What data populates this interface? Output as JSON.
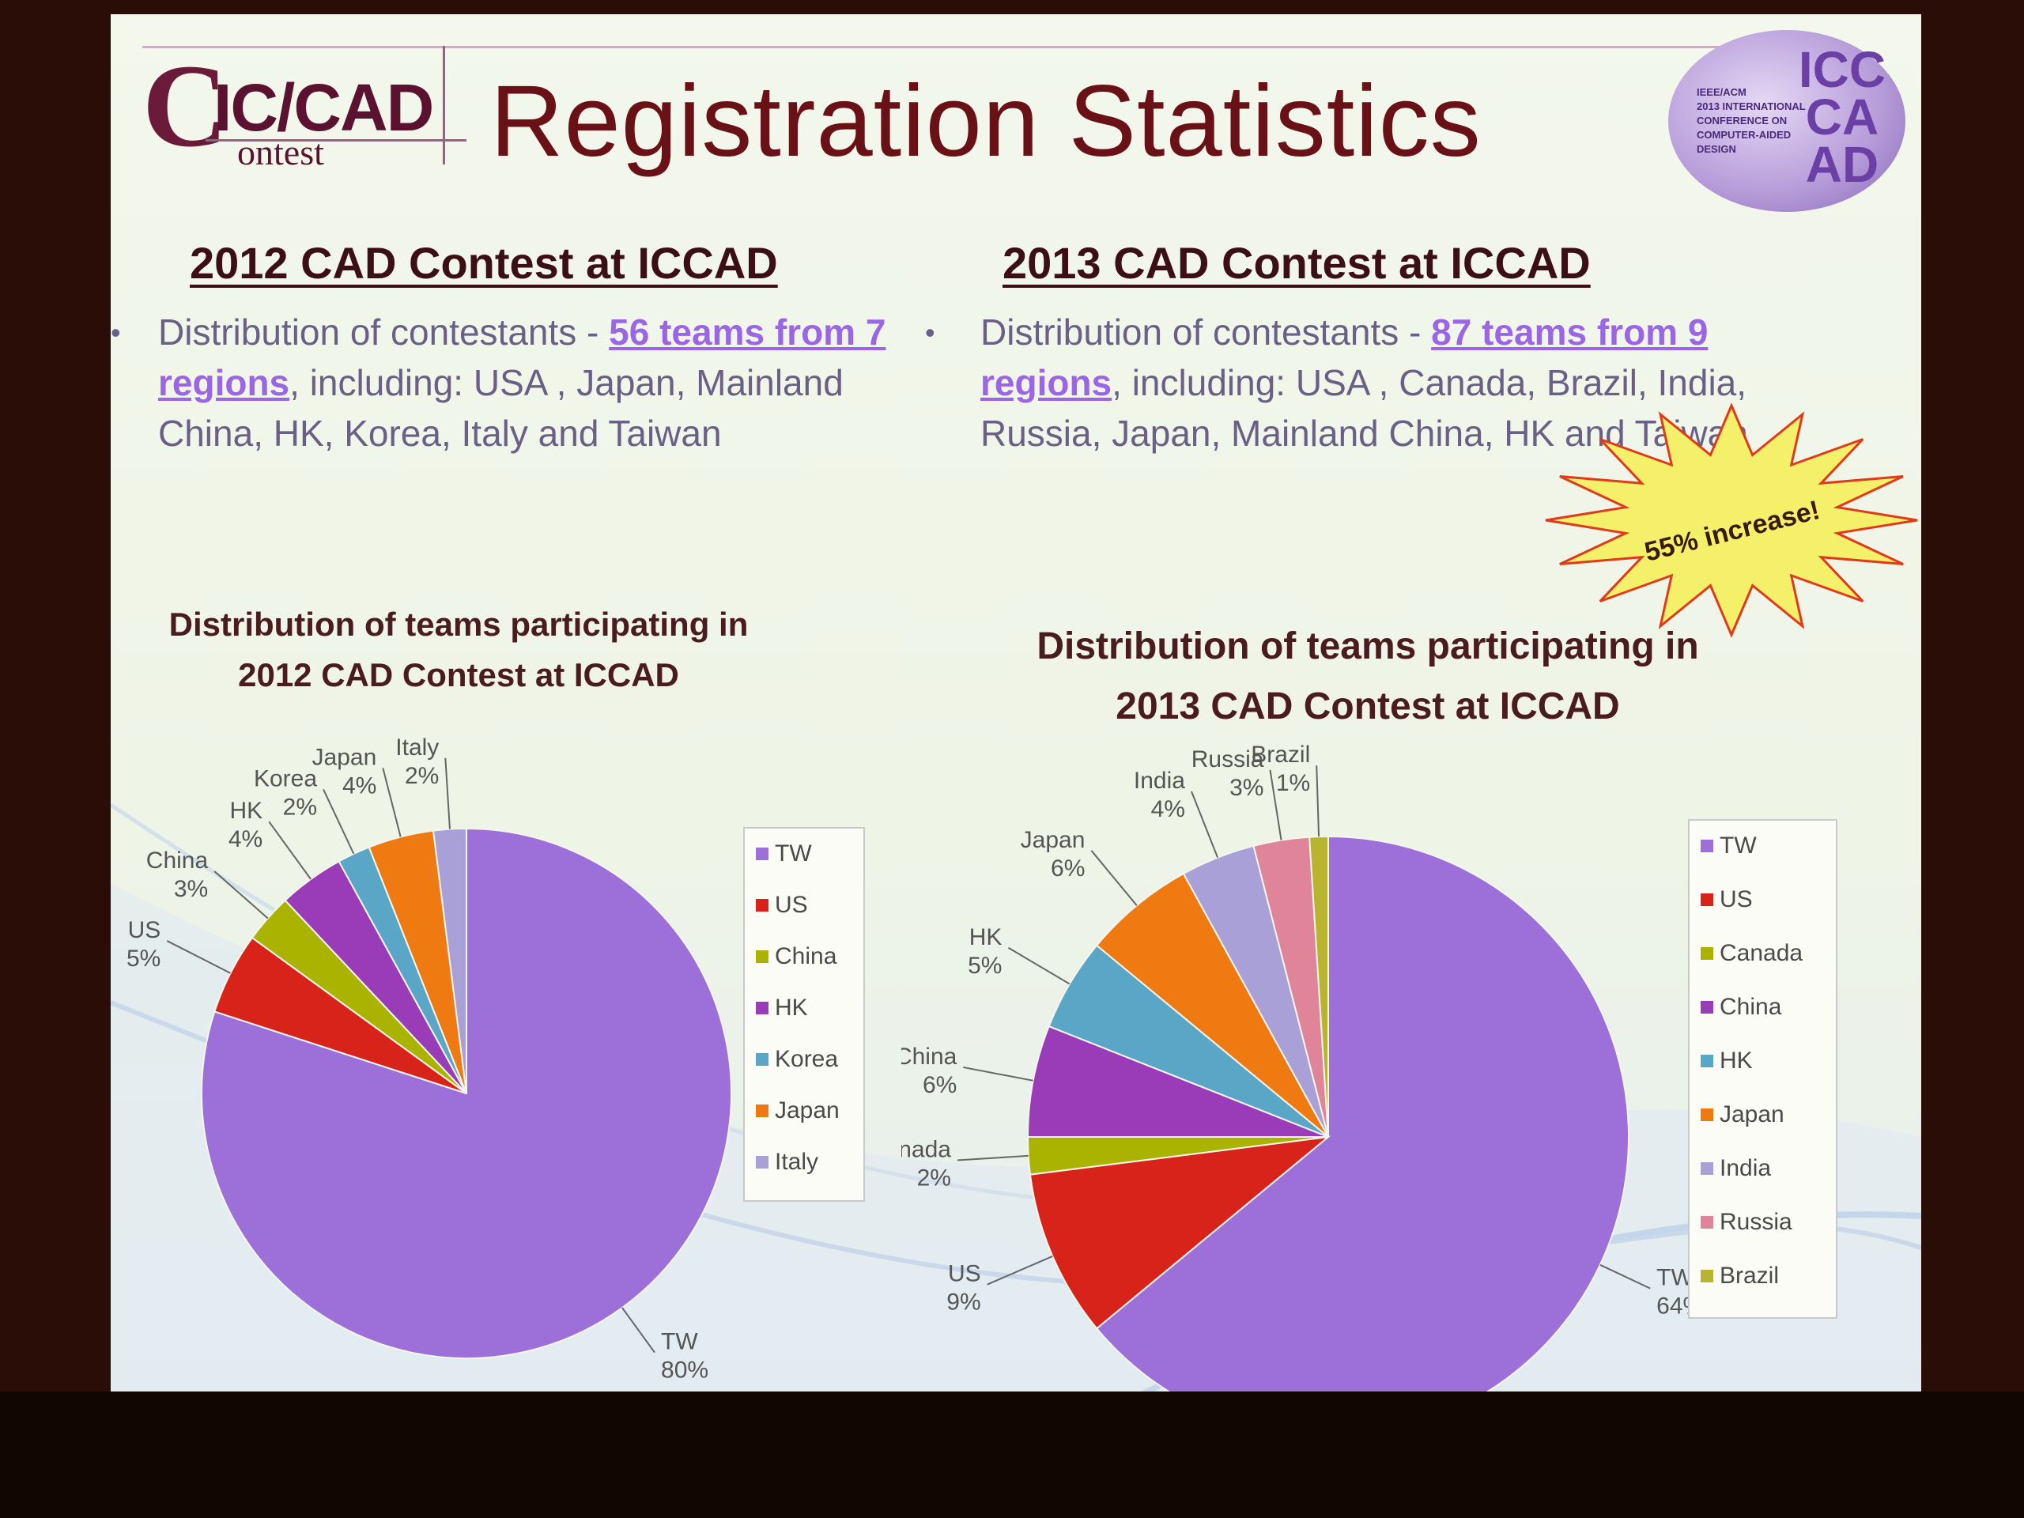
{
  "slide": {
    "logo_left": {
      "c": "C",
      "ic_cad": "IC/CAD",
      "contest": "ontest"
    },
    "title": "Registration Statistics",
    "logo_right": {
      "letters": [
        "ICC",
        "CA",
        "AD"
      ],
      "caption": [
        "IEEE/ACM",
        "2013 INTERNATIONAL",
        "CONFERENCE ON",
        "COMPUTER-AIDED",
        "DESIGN"
      ]
    },
    "left": {
      "heading": "2012 CAD Contest at ICCAD",
      "para_pre": "Distribution of contestants - ",
      "para_hl": "56 teams from 7 regions",
      "para_post": ", including: USA , Japan, Mainland China, HK, Korea, Italy and Taiwan"
    },
    "right": {
      "heading": "2013 CAD Contest at ICCAD",
      "para_pre": "Distribution of contestants - ",
      "para_hl": "87 teams from 9 regions",
      "para_post": ", including: USA , Canada, Brazil, India, Russia, Japan, Mainland China, HK and Taiwan"
    },
    "burst": {
      "text": "55% increase!"
    },
    "colors": {
      "title": "#6a1118",
      "heading": "#3b0f14",
      "highlight": "#9a66e6",
      "body": "#6a5f86",
      "burst": "#f4f06a"
    }
  },
  "chart_data": [
    {
      "type": "pie",
      "title_lines": [
        "Distribution of teams participating in",
        "2012 CAD Contest at ICCAD"
      ],
      "categories": [
        "TW",
        "US",
        "China",
        "HK",
        "Korea",
        "Japan",
        "Italy"
      ],
      "values": [
        80,
        5,
        3,
        4,
        2,
        4,
        2
      ],
      "labels": [
        "80%",
        "5%",
        "3%",
        "4%",
        "2%",
        "4%",
        "2%"
      ],
      "colors": [
        "#9d6fd8",
        "#d8231b",
        "#aab400",
        "#9a3bb8",
        "#5aa6c7",
        "#ef7a12",
        "#a9a0d8"
      ],
      "legend_position": "right"
    },
    {
      "type": "pie",
      "title_lines": [
        "Distribution of teams participating in",
        "2013 CAD Contest at ICCAD"
      ],
      "categories": [
        "TW",
        "US",
        "Canada",
        "China",
        "HK",
        "Japan",
        "India",
        "Russia",
        "Brazil"
      ],
      "values": [
        64,
        9,
        2,
        6,
        5,
        6,
        4,
        3,
        1
      ],
      "labels": [
        "64%",
        "9%",
        "2%",
        "6%",
        "5%",
        "6%",
        "4%",
        "3%",
        "1%"
      ],
      "colors": [
        "#9d6fd8",
        "#d8231b",
        "#aab400",
        "#9a3bb8",
        "#5aa6c7",
        "#ef7a12",
        "#a9a0d8",
        "#e0849a",
        "#b8b430"
      ],
      "legend_position": "right"
    }
  ]
}
